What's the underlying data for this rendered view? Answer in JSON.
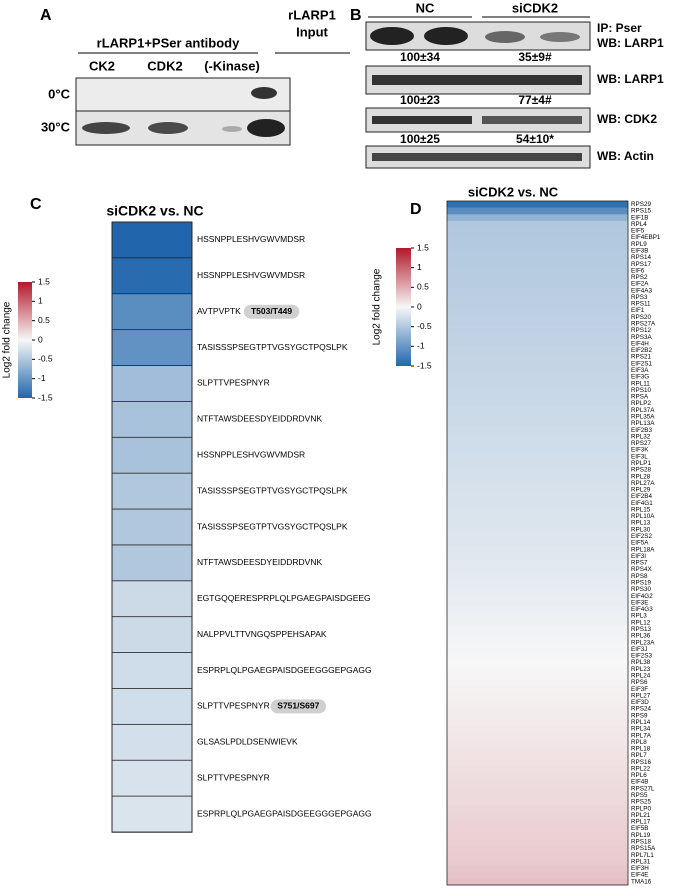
{
  "panel_a": {
    "label": "A",
    "header": "rLARP1+PSer antibody",
    "input_label": [
      "rLARP1",
      "Input"
    ],
    "lanes": [
      "CK2",
      "CDK2",
      "(-Kinase)"
    ],
    "rows": [
      "0°C",
      "30°C"
    ]
  },
  "panel_b": {
    "label": "B",
    "groups": [
      "NC",
      "siCDK2"
    ],
    "blots": [
      {
        "label": "IP: Pser",
        "sublabel": "WB: LARP1",
        "quant": [
          "100±34",
          "35±9#"
        ]
      },
      {
        "label": "WB: LARP1",
        "quant": [
          "100±23",
          "77±4#"
        ]
      },
      {
        "label": "WB: CDK2",
        "quant": [
          "100±25",
          "54±10*"
        ]
      },
      {
        "label": "WB: Actin"
      }
    ]
  },
  "chart_data": [
    {
      "type": "heatmap",
      "panel": "C",
      "title": "siCDK2 vs. NC",
      "colorbar_label": "Log2 fold change",
      "zlim": [
        -1.5,
        1.5
      ],
      "zticks": [
        1.5,
        1,
        0.5,
        0,
        -0.5,
        -1,
        -1.5
      ],
      "colormap": [
        "#2166ac",
        "#f7f7f7",
        "#b2182b"
      ],
      "categories": [
        "HSSNPPLESHVGWVMDSR",
        "HSSNPPLESHVGWVMDSR",
        "AVTPVPTK",
        "TASISSSPSEGTPTVGSYGCTPQSLPK",
        "SLPTTVPESPNYR",
        "NTFTAWSDEESDYEIDDRDVNK",
        "HSSNPPLESHVGWVMDSR",
        "TASISSSPSEGTPTVGSYGCTPQSLPK",
        "TASISSSPSEGTPTVGSYGCTPQSLPK",
        "NTFTAWSDEESDYEIDDRDVNK",
        "EGTGQQERESPRPLQLPGAEGPAISDGEEG",
        "NALPPVLTTVNGQSPPEHSAPAK",
        "ESPRPLQLPGAEGPAISDGEEGGGEPGAGG",
        "SLPTTVPESPNYR",
        "GLSASLPDLDSENWIEVK",
        "SLPTTVPESPNYR",
        "ESPRPLQLPGAEGPAISDGEEGGGEPGAGG"
      ],
      "tags": [
        null,
        null,
        "T503/T449",
        null,
        null,
        null,
        null,
        null,
        null,
        null,
        null,
        null,
        null,
        "S751/S697",
        null,
        null,
        null
      ],
      "values": [
        -1.5,
        -1.45,
        -1.1,
        -1.05,
        -0.6,
        -0.55,
        -0.55,
        -0.5,
        -0.5,
        -0.5,
        -0.3,
        -0.3,
        -0.28,
        -0.27,
        -0.25,
        -0.22,
        -0.2
      ]
    },
    {
      "type": "heatmap",
      "panel": "D",
      "title": "siCDK2 vs. NC",
      "colorbar_label": "Log2 fold change",
      "zlim": [
        -1.5,
        1.5
      ],
      "zticks": [
        1.5,
        1,
        0.5,
        0,
        -0.5,
        -1,
        -1.5
      ],
      "colormap": [
        "#2166ac",
        "#f7f7f7",
        "#b2182b"
      ],
      "categories": [
        "RPS29",
        "RPS15",
        "EIF1B",
        "RPL4",
        "EIF5",
        "EIF4EBP1",
        "RPL9",
        "EIF3B",
        "RPS14",
        "RPS17",
        "EIF6",
        "RPS2",
        "EIF2A",
        "EIF4A3",
        "RPS3",
        "RPS11",
        "EIF1",
        "RPS20",
        "RPS27A",
        "RPS12",
        "RPS3A",
        "EIF4H",
        "EIF2B2",
        "RPS21",
        "EIF2S1",
        "EIF3A",
        "EIF3G",
        "RPL11",
        "RPS10",
        "RPSA",
        "RPLP2",
        "RPL37A",
        "RPL35A",
        "RPL13A",
        "EIF2B3",
        "RPL32",
        "RPS27",
        "EIF3K",
        "EIF3L",
        "RPLP1",
        "RPS28",
        "RPL28",
        "RPL27A",
        "RPL29",
        "EIF2B4",
        "EIF4G1",
        "RPL15",
        "RPL10A",
        "RPL13",
        "RPL30",
        "EIF2S2",
        "EIF5A",
        "RPL18A",
        "EIF3I",
        "RPS7",
        "RPS4X",
        "RPS8",
        "RPS19",
        "RPS30",
        "EIF4G2",
        "EIF3E",
        "EIF4G3",
        "RPL3",
        "RPL12",
        "RPS13",
        "RPL36",
        "RPL23A",
        "EIF3J",
        "EIF2S3",
        "RPL38",
        "RPL23",
        "RPL24",
        "RPS6",
        "EIF3F",
        "RPL27",
        "EIF3D",
        "RPS24",
        "RPS9",
        "RPL14",
        "RPL34",
        "RPL7A",
        "RPL8",
        "RPL18",
        "RPL7",
        "RPS16",
        "RPL22",
        "RPL6",
        "EIF4B",
        "RPS27L",
        "RPS5",
        "RPS25",
        "RPLP0",
        "RPL21",
        "RPL17",
        "EIF5B",
        "RPL19",
        "RPS18",
        "RPS15A",
        "RPL7L1",
        "RPL31",
        "EIF3H",
        "EIF4E",
        "TMA16"
      ],
      "values": [
        -1.4,
        -1.1,
        -0.7,
        -0.5,
        -0.49,
        -0.48,
        -0.48,
        -0.47,
        -0.46,
        -0.46,
        -0.45,
        -0.44,
        -0.44,
        -0.43,
        -0.42,
        -0.42,
        -0.41,
        -0.4,
        -0.4,
        -0.39,
        -0.38,
        -0.38,
        -0.37,
        -0.36,
        -0.36,
        -0.35,
        -0.34,
        -0.34,
        -0.33,
        -0.32,
        -0.32,
        -0.31,
        -0.3,
        -0.3,
        -0.29,
        -0.28,
        -0.28,
        -0.27,
        -0.26,
        -0.26,
        -0.25,
        -0.24,
        -0.24,
        -0.23,
        -0.22,
        -0.22,
        -0.21,
        -0.2,
        -0.2,
        -0.19,
        -0.18,
        -0.18,
        -0.17,
        -0.16,
        -0.15,
        -0.14,
        -0.13,
        -0.12,
        -0.11,
        -0.1,
        -0.09,
        -0.08,
        -0.07,
        -0.06,
        -0.05,
        -0.04,
        -0.03,
        -0.02,
        -0.01,
        0,
        0.01,
        0.02,
        0.03,
        0.04,
        0.05,
        0.06,
        0.07,
        0.08,
        0.09,
        0.1,
        0.11,
        0.12,
        0.13,
        0.14,
        0.15,
        0.16,
        0.17,
        0.18,
        0.19,
        0.2,
        0.21,
        0.22,
        0.23,
        0.24,
        0.25,
        0.26,
        0.27,
        0.28,
        0.29,
        0.3,
        0.32,
        0.34,
        0.38
      ]
    }
  ]
}
